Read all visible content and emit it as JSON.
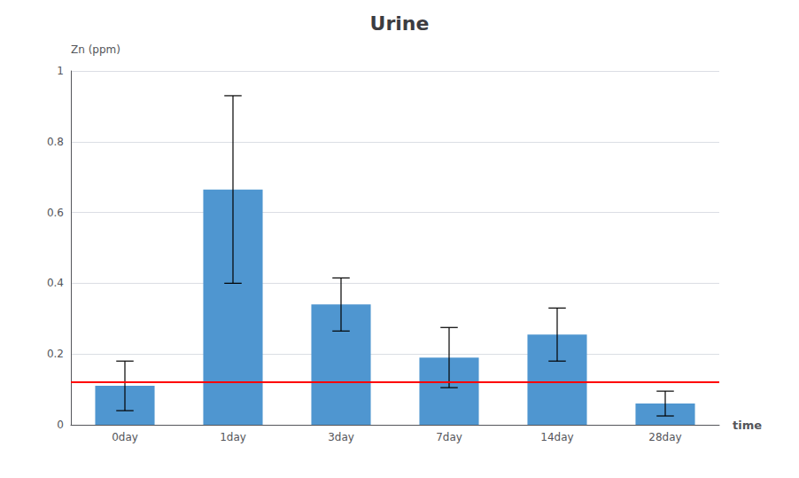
{
  "chart_data": {
    "type": "bar",
    "title": "Urine",
    "xlabel": "time",
    "ylabel": "Zn (ppm)",
    "categories": [
      "0day",
      "1day",
      "3day",
      "7day",
      "14day",
      "28day"
    ],
    "values": [
      0.11,
      0.665,
      0.34,
      0.19,
      0.255,
      0.06
    ],
    "errors": [
      0.07,
      0.265,
      0.075,
      0.085,
      0.075,
      0.035
    ],
    "color": "#4f96d0",
    "reference_line": {
      "value": 0.115,
      "color": "red"
    },
    "ylim": [
      0,
      1.0
    ],
    "yticks": [
      0,
      0.2,
      0.4,
      0.6,
      0.8,
      1
    ],
    "grid": true
  }
}
